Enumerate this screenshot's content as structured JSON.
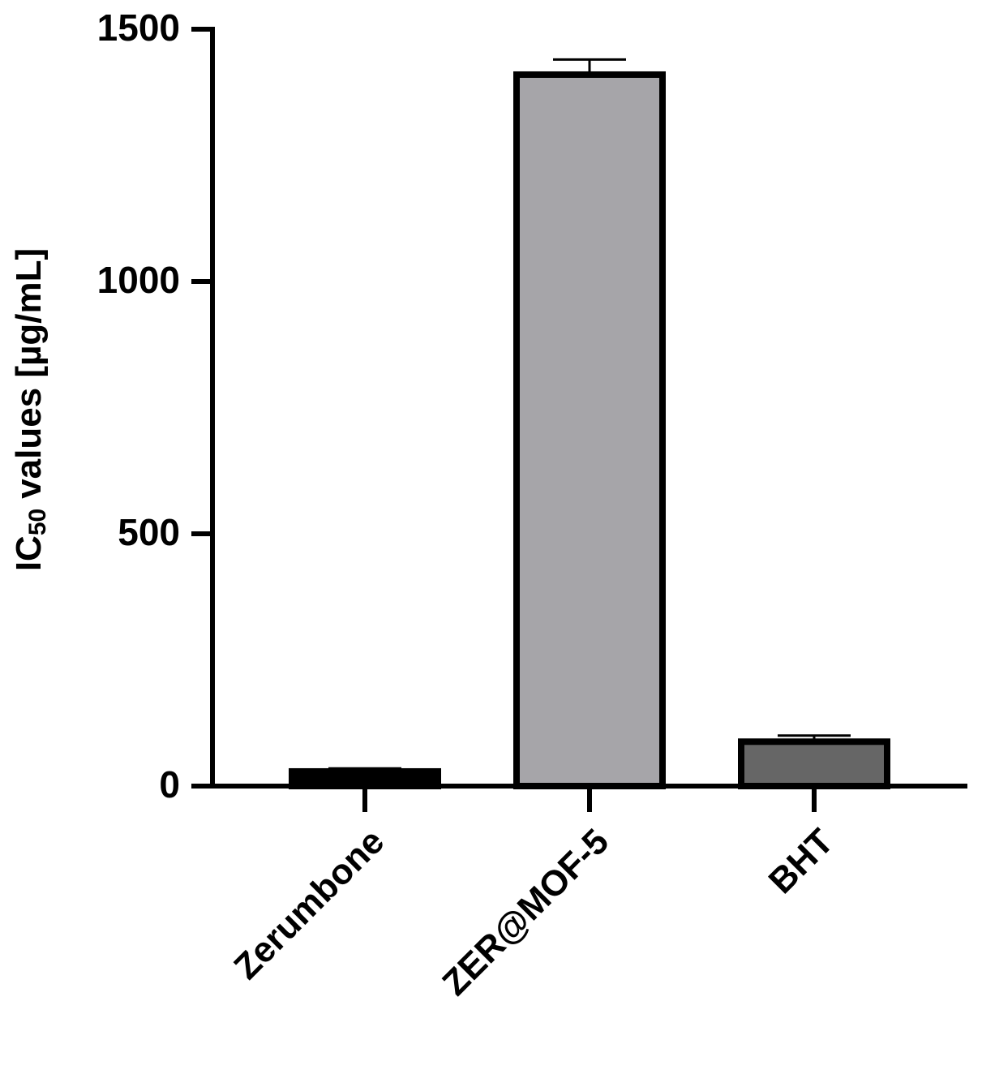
{
  "chart_data": {
    "type": "bar",
    "y_label": [
      "IC",
      "50",
      "values [µg/mL]"
    ],
    "categories": [
      "Zerumbone",
      "ZER@MOF-5",
      "BHT"
    ],
    "values": [
      29,
      1410,
      88
    ],
    "errors": [
      6,
      30,
      12
    ],
    "colors": [
      "#000000",
      "#a6a5a9",
      "#666666"
    ],
    "ylim": [
      0,
      1500
    ],
    "yticks": [
      0,
      500,
      1000,
      1500
    ]
  }
}
